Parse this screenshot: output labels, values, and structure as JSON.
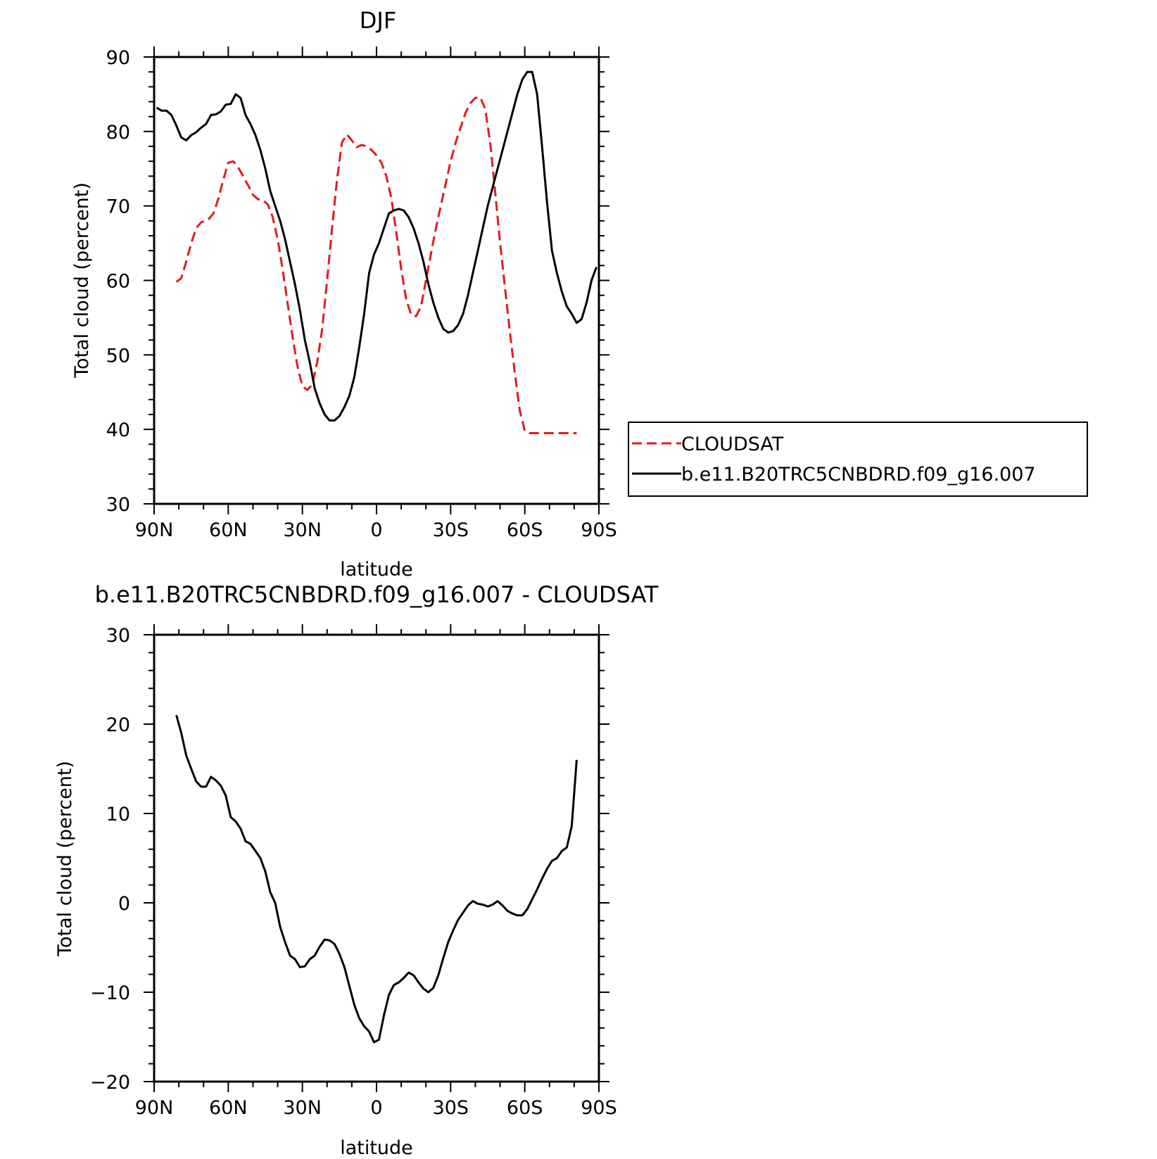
{
  "chart_data": [
    {
      "type": "line",
      "title": "DJF",
      "xlabel": "latitude",
      "ylabel": "Total cloud (percent)",
      "xlim": [
        90,
        -90
      ],
      "ylim": [
        30,
        90
      ],
      "xticks": [
        90,
        60,
        30,
        0,
        -30,
        -60,
        -90
      ],
      "xtick_labels": [
        "90N",
        "60N",
        "30N",
        "0",
        "30S",
        "60S",
        "90S"
      ],
      "yticks": [
        30,
        40,
        50,
        60,
        70,
        80,
        90
      ],
      "ytick_labels": [
        "30",
        "40",
        "50",
        "60",
        "70",
        "80",
        "90"
      ],
      "grid": false,
      "legend": "outside-right",
      "series": [
        {
          "name": "CLOUDSAT",
          "color": "#e31a1c",
          "dash": "dashed",
          "x": [
            81,
            79,
            77,
            75,
            73,
            71,
            68,
            66,
            64,
            62,
            60,
            58,
            56,
            54,
            52,
            50,
            48,
            46,
            44,
            42,
            40,
            38,
            36,
            34,
            32,
            30,
            28,
            26,
            24,
            22,
            20,
            18,
            16,
            14,
            12,
            10,
            8,
            6,
            4,
            2,
            0,
            -2,
            -4,
            -6,
            -8,
            -10,
            -12,
            -14,
            -16,
            -18,
            -20,
            -22,
            -24,
            -26,
            -28,
            -30,
            -32,
            -34,
            -36,
            -38,
            -40,
            -42,
            -44,
            -46,
            -48,
            -50,
            -52,
            -54,
            -56,
            -58,
            -60,
            -62,
            -64,
            -66,
            -68,
            -70,
            -72,
            -74,
            -76,
            -78,
            -80,
            -81
          ],
          "y": [
            59.8,
            60.3,
            62.5,
            65.0,
            67.0,
            67.8,
            68.2,
            69.0,
            71.0,
            73.5,
            75.8,
            76.0,
            75.2,
            74.0,
            72.8,
            71.5,
            70.9,
            70.8,
            70.2,
            68.5,
            65.5,
            61.5,
            57.0,
            52.5,
            48.5,
            45.8,
            45.3,
            46.0,
            49.0,
            53.5,
            60.0,
            67.0,
            73.5,
            78.5,
            79.6,
            78.8,
            77.9,
            78.2,
            78.0,
            77.5,
            76.8,
            75.8,
            74.0,
            71.0,
            66.5,
            61.5,
            57.5,
            55.4,
            55.2,
            56.5,
            60.0,
            63.5,
            67.0,
            70.0,
            73.0,
            76.0,
            78.5,
            80.5,
            82.5,
            83.8,
            84.5,
            84.6,
            83.0,
            78.5,
            72.0,
            65.0,
            59.0,
            53.0,
            47.5,
            42.5,
            39.8,
            39.5,
            39.5,
            39.5,
            39.5,
            39.5,
            39.5,
            39.5,
            39.5,
            39.5,
            39.5,
            39.5
          ]
        },
        {
          "name": "b.e11.B20TRC5CNBDRD.f09_g16.007",
          "color": "#000000",
          "dash": "solid",
          "x": [
            89,
            87,
            85,
            83,
            81,
            79,
            77,
            75,
            73,
            71,
            69,
            67,
            65,
            63,
            61,
            59,
            57,
            55,
            53,
            51,
            49,
            47,
            45,
            43,
            41,
            39,
            37,
            35,
            33,
            31,
            29,
            27,
            25,
            23,
            21,
            19,
            17,
            15,
            13,
            11,
            9,
            7,
            5,
            3,
            1,
            -1,
            -3,
            -5,
            -7,
            -9,
            -11,
            -13,
            -15,
            -17,
            -19,
            -21,
            -23,
            -25,
            -27,
            -29,
            -31,
            -33,
            -35,
            -37,
            -39,
            -41,
            -43,
            -45,
            -47,
            -49,
            -51,
            -53,
            -55,
            -57,
            -59,
            -61,
            -63,
            -65,
            -67,
            -69,
            -71,
            -73,
            -75,
            -77,
            -79,
            -81,
            -83,
            -85,
            -87,
            -89
          ],
          "y": [
            83.2,
            82.8,
            82.8,
            82.2,
            80.8,
            79.2,
            78.8,
            79.5,
            79.9,
            80.5,
            81.0,
            82.2,
            82.3,
            82.7,
            83.6,
            83.7,
            85.0,
            84.5,
            82.2,
            81.0,
            79.5,
            77.5,
            75.0,
            72.0,
            70.0,
            68.0,
            65.5,
            62.5,
            59.5,
            56.0,
            52.0,
            49.0,
            45.5,
            43.5,
            42.0,
            41.2,
            41.2,
            41.8,
            43.0,
            44.5,
            47.0,
            51.0,
            55.5,
            61.0,
            63.5,
            65.0,
            67.0,
            69.0,
            69.4,
            69.6,
            69.4,
            68.5,
            67.0,
            65.0,
            62.5,
            59.5,
            57.0,
            55.0,
            53.5,
            53.0,
            53.2,
            54.0,
            55.5,
            58.0,
            61.0,
            64.0,
            67.0,
            70.0,
            72.5,
            75.0,
            77.5,
            80.0,
            82.5,
            85.0,
            87.0,
            88.0,
            88.0,
            85.0,
            78.0,
            70.5,
            64.0,
            61.0,
            58.5,
            56.5,
            55.5,
            54.3,
            54.8,
            57.0,
            60.0,
            61.8
          ]
        }
      ]
    },
    {
      "type": "line",
      "title": "b.e11.B20TRC5CNBDRD.f09_g16.007 - CLOUDSAT",
      "xlabel": "latitude",
      "ylabel": "Total cloud (percent)",
      "xlim": [
        90,
        -90
      ],
      "ylim": [
        -20,
        30
      ],
      "xticks": [
        90,
        60,
        30,
        0,
        -30,
        -60,
        -90
      ],
      "xtick_labels": [
        "90N",
        "60N",
        "30N",
        "0",
        "30S",
        "60S",
        "90S"
      ],
      "yticks": [
        -20,
        -10,
        0,
        10,
        20,
        30
      ],
      "ytick_labels": [
        "−20",
        "−10",
        "0",
        "10",
        "20",
        "30"
      ],
      "grid": false,
      "series": [
        {
          "name": "",
          "color": "#000000",
          "dash": "solid",
          "x": [
            81,
            79,
            77,
            75,
            73,
            71,
            69,
            67,
            65,
            63,
            61,
            59,
            57,
            55,
            53,
            51,
            49,
            47,
            45,
            43,
            41,
            39,
            37,
            35,
            33,
            31,
            29,
            27,
            25,
            23,
            21,
            19,
            17,
            15,
            13,
            11,
            9,
            7,
            5,
            3,
            1,
            -1,
            -3,
            -5,
            -7,
            -9,
            -11,
            -13,
            -15,
            -17,
            -19,
            -21,
            -23,
            -25,
            -27,
            -29,
            -31,
            -33,
            -35,
            -37,
            -39,
            -41,
            -43,
            -45,
            -47,
            -49,
            -51,
            -53,
            -55,
            -57,
            -59,
            -61,
            -63,
            -65,
            -67,
            -69,
            -71,
            -73,
            -75,
            -77,
            -79,
            -81
          ],
          "y": [
            21.0,
            19.0,
            16.5,
            15.0,
            13.6,
            13.0,
            13.0,
            14.1,
            13.7,
            13.1,
            12.0,
            9.6,
            9.1,
            8.3,
            6.9,
            6.6,
            5.8,
            5.0,
            3.5,
            1.2,
            0.0,
            -2.7,
            -4.4,
            -5.9,
            -6.3,
            -7.2,
            -7.1,
            -6.3,
            -5.9,
            -4.9,
            -4.1,
            -4.2,
            -4.6,
            -5.7,
            -7.2,
            -9.3,
            -11.4,
            -12.9,
            -13.8,
            -14.4,
            -15.6,
            -15.3,
            -12.6,
            -10.3,
            -9.2,
            -8.9,
            -8.4,
            -7.8,
            -8.1,
            -8.9,
            -9.6,
            -10.0,
            -9.5,
            -8.1,
            -6.2,
            -4.4,
            -3.1,
            -1.9,
            -1.1,
            -0.3,
            0.2,
            -0.1,
            -0.2,
            -0.4,
            -0.2,
            0.2,
            -0.3,
            -0.9,
            -1.2,
            -1.4,
            -1.4,
            -0.7,
            0.4,
            1.5,
            2.7,
            3.8,
            4.7,
            5.0,
            5.8,
            6.2,
            8.6,
            16.0
          ]
        }
      ]
    }
  ]
}
